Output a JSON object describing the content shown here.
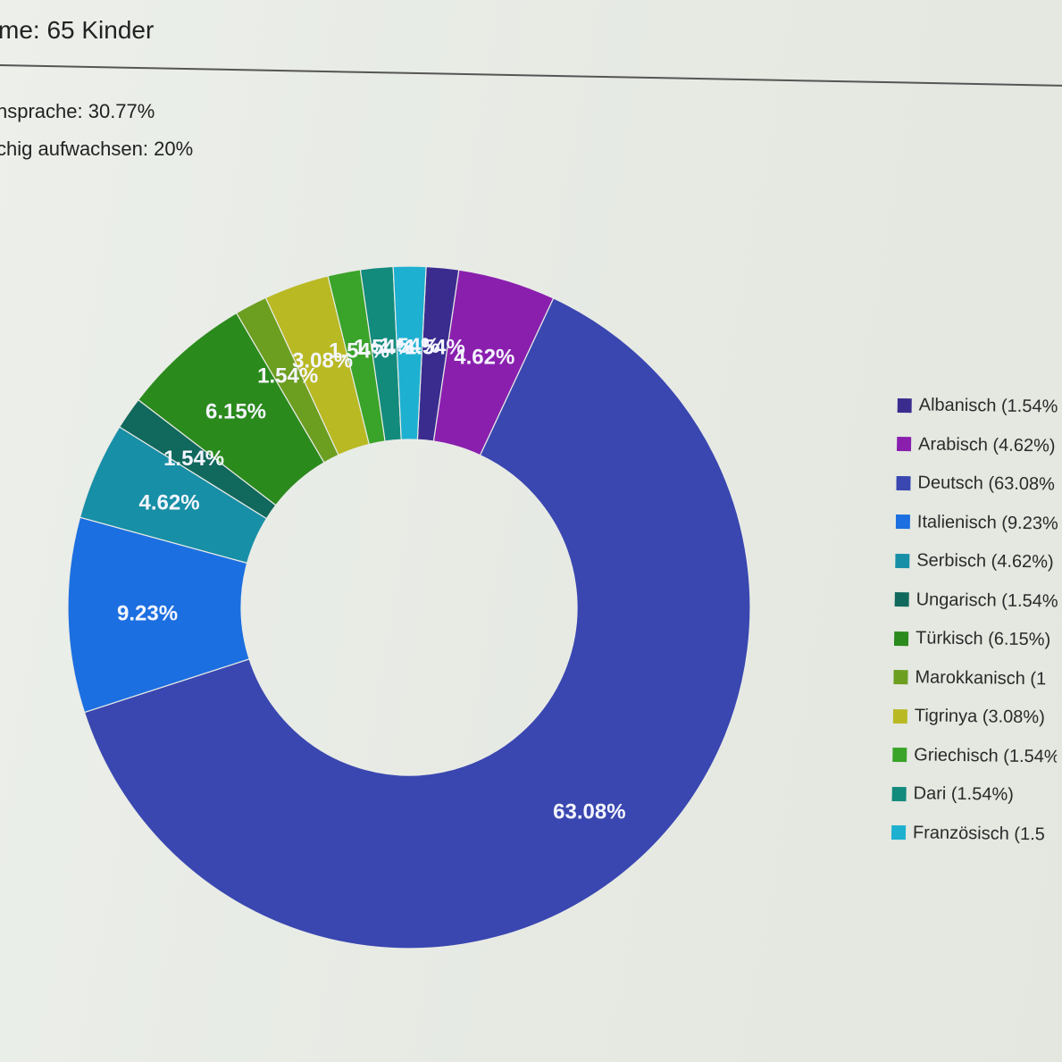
{
  "header": {
    "total": "me: 65 Kinder",
    "stat_1": "nsprache: 30.77%",
    "stat_2": "chig aufwachsen: 20%"
  },
  "chart_data": {
    "type": "pie",
    "donut": true,
    "legend_position": "right",
    "slices": [
      {
        "label": "Albanisch",
        "value": 1.54,
        "display": "1.54%",
        "legend": "Albanisch (1.54%",
        "color": "#3a2c8f"
      },
      {
        "label": "Arabisch",
        "value": 4.62,
        "display": "4.62%",
        "legend": "Arabisch (4.62%)",
        "color": "#8a1fae"
      },
      {
        "label": "Deutsch",
        "value": 63.08,
        "display": "63.08%",
        "legend": "Deutsch (63.08%",
        "color": "#3a47b0"
      },
      {
        "label": "Italienisch",
        "value": 9.23,
        "display": "9.23%",
        "legend": "Italienisch (9.23%",
        "color": "#1c6fe0"
      },
      {
        "label": "Serbisch",
        "value": 4.62,
        "display": "4.62%",
        "legend": "Serbisch (4.62%)",
        "color": "#178fa6"
      },
      {
        "label": "Ungarisch",
        "value": 1.54,
        "display": "1.54%",
        "legend": "Ungarisch (1.54%",
        "color": "#11685c"
      },
      {
        "label": "Türkisch",
        "value": 6.15,
        "display": "6.15%",
        "legend": "Türkisch (6.15%)",
        "color": "#2b8a1c"
      },
      {
        "label": "Marokkanisch",
        "value": 1.54,
        "display": "1.54%",
        "legend": "Marokkanisch (1",
        "color": "#6c9e20"
      },
      {
        "label": "Tigrinya",
        "value": 3.08,
        "display": "3.08%",
        "legend": "Tigrinya (3.08%)",
        "color": "#b9b923"
      },
      {
        "label": "Griechisch",
        "value": 1.54,
        "display": "1.54%",
        "legend": "Griechisch (1.54%",
        "color": "#3aa329"
      },
      {
        "label": "Dari",
        "value": 1.54,
        "display": "1.54%",
        "legend": "Dari (1.54%)",
        "color": "#128a7c"
      },
      {
        "label": "Französisch",
        "value": 1.54,
        "display": "1.54%",
        "legend": "Französisch (1.5",
        "color": "#1eb0d0"
      }
    ]
  }
}
